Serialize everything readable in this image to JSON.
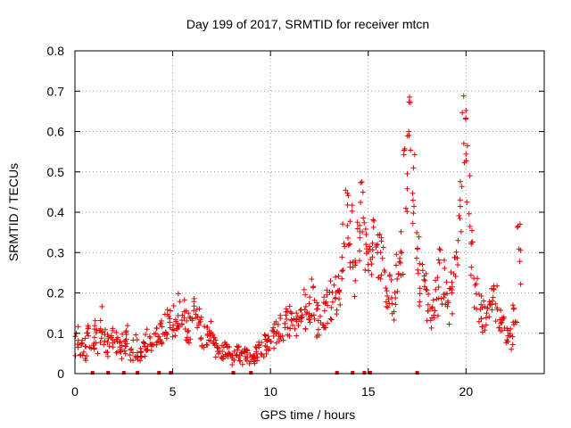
{
  "chart_data": {
    "type": "scatter",
    "title": "Day 199 of 2017, SRMTID for receiver mtcn",
    "xlabel": "GPS time / hours",
    "ylabel": "SRMTID / TECUs",
    "xlim": [
      0,
      24
    ],
    "ylim": [
      0,
      0.8
    ],
    "x_ticks": [
      0,
      5,
      10,
      15,
      20
    ],
    "y_ticks": [
      0,
      0.1,
      0.2,
      0.3,
      0.4,
      0.5,
      0.6,
      0.7,
      0.8
    ],
    "x_tick_labels": [
      "0",
      "5",
      "10",
      "15",
      "20"
    ],
    "y_tick_labels": [
      "0",
      "0.1",
      "0.2",
      "0.3",
      "0.4",
      "0.5",
      "0.6",
      "0.7",
      "0.8"
    ],
    "grid": true,
    "marker": "+",
    "marker_color": "#e00000",
    "series": [
      {
        "name": "SRMTID",
        "x": [
          0.0,
          0.2,
          0.4,
          0.6,
          0.8,
          1.0,
          1.2,
          1.4,
          1.6,
          1.8,
          2.0,
          2.2,
          2.4,
          2.6,
          2.8,
          3.0,
          3.2,
          3.4,
          3.6,
          3.8,
          4.0,
          4.2,
          4.4,
          4.6,
          4.8,
          5.0,
          5.2,
          5.4,
          5.6,
          5.8,
          6.0,
          6.2,
          6.4,
          6.6,
          6.8,
          7.0,
          7.2,
          7.4,
          7.6,
          7.8,
          8.0,
          8.2,
          8.4,
          8.6,
          8.8,
          9.0,
          9.2,
          9.4,
          9.6,
          9.8,
          10.0,
          10.2,
          10.4,
          10.6,
          10.8,
          11.0,
          11.2,
          11.4,
          11.6,
          11.8,
          12.0,
          12.2,
          12.4,
          12.6,
          12.8,
          13.0,
          13.2,
          13.4,
          13.6,
          13.8,
          14.0,
          14.2,
          14.4,
          14.6,
          14.8,
          15.0,
          15.2,
          15.4,
          15.6,
          15.8,
          16.0,
          16.2,
          16.4,
          16.6,
          16.8,
          17.0,
          17.2,
          17.4,
          17.6,
          17.8,
          18.0,
          18.2,
          18.4,
          18.6,
          18.8,
          19.0,
          19.2,
          19.4,
          19.6,
          19.8,
          20.0,
          20.2,
          20.4,
          20.6,
          20.8,
          21.0,
          21.2,
          21.4,
          21.6,
          21.8,
          22.0,
          22.2,
          22.4,
          22.6
        ],
        "y": [
          0.08,
          0.07,
          0.06,
          0.09,
          0.1,
          0.09,
          0.12,
          0.08,
          0.07,
          0.09,
          0.08,
          0.06,
          0.07,
          0.09,
          0.06,
          0.07,
          0.05,
          0.06,
          0.08,
          0.07,
          0.09,
          0.1,
          0.11,
          0.12,
          0.14,
          0.13,
          0.15,
          0.16,
          0.12,
          0.11,
          0.14,
          0.13,
          0.1,
          0.09,
          0.11,
          0.08,
          0.06,
          0.05,
          0.06,
          0.05,
          0.04,
          0.05,
          0.04,
          0.05,
          0.04,
          0.03,
          0.05,
          0.06,
          0.07,
          0.08,
          0.09,
          0.1,
          0.11,
          0.12,
          0.13,
          0.14,
          0.12,
          0.15,
          0.16,
          0.17,
          0.18,
          0.14,
          0.13,
          0.15,
          0.16,
          0.18,
          0.2,
          0.22,
          0.3,
          0.38,
          0.34,
          0.24,
          0.32,
          0.4,
          0.3,
          0.26,
          0.34,
          0.3,
          0.28,
          0.22,
          0.2,
          0.18,
          0.24,
          0.3,
          0.5,
          0.62,
          0.45,
          0.3,
          0.22,
          0.2,
          0.16,
          0.15,
          0.2,
          0.24,
          0.22,
          0.18,
          0.2,
          0.3,
          0.42,
          0.6,
          0.48,
          0.3,
          0.2,
          0.16,
          0.14,
          0.15,
          0.18,
          0.17,
          0.14,
          0.12,
          0.1,
          0.09,
          0.12,
          0.3
        ],
        "scatter_spread": [
          0.04,
          0.03,
          0.03,
          0.03,
          0.04,
          0.05,
          0.05,
          0.03,
          0.03,
          0.03,
          0.03,
          0.03,
          0.03,
          0.03,
          0.03,
          0.03,
          0.02,
          0.02,
          0.03,
          0.03,
          0.03,
          0.03,
          0.04,
          0.04,
          0.05,
          0.04,
          0.05,
          0.05,
          0.04,
          0.04,
          0.05,
          0.04,
          0.04,
          0.03,
          0.03,
          0.02,
          0.02,
          0.02,
          0.02,
          0.02,
          0.02,
          0.02,
          0.02,
          0.02,
          0.02,
          0.02,
          0.02,
          0.02,
          0.03,
          0.03,
          0.03,
          0.03,
          0.04,
          0.04,
          0.04,
          0.04,
          0.04,
          0.04,
          0.05,
          0.05,
          0.07,
          0.05,
          0.04,
          0.05,
          0.05,
          0.05,
          0.06,
          0.06,
          0.08,
          0.1,
          0.08,
          0.05,
          0.06,
          0.08,
          0.07,
          0.06,
          0.08,
          0.07,
          0.07,
          0.06,
          0.06,
          0.06,
          0.07,
          0.08,
          0.1,
          0.08,
          0.1,
          0.07,
          0.06,
          0.05,
          0.04,
          0.04,
          0.06,
          0.07,
          0.07,
          0.06,
          0.06,
          0.07,
          0.1,
          0.1,
          0.1,
          0.08,
          0.05,
          0.04,
          0.04,
          0.04,
          0.05,
          0.05,
          0.04,
          0.04,
          0.03,
          0.03,
          0.05,
          0.08
        ]
      }
    ],
    "zero_markers_x": [
      0.9,
      1.7,
      2.5,
      3.2,
      4.3,
      4.9,
      8.1,
      9.0,
      13.4,
      14.2,
      14.8,
      15.1,
      17.5
    ]
  }
}
